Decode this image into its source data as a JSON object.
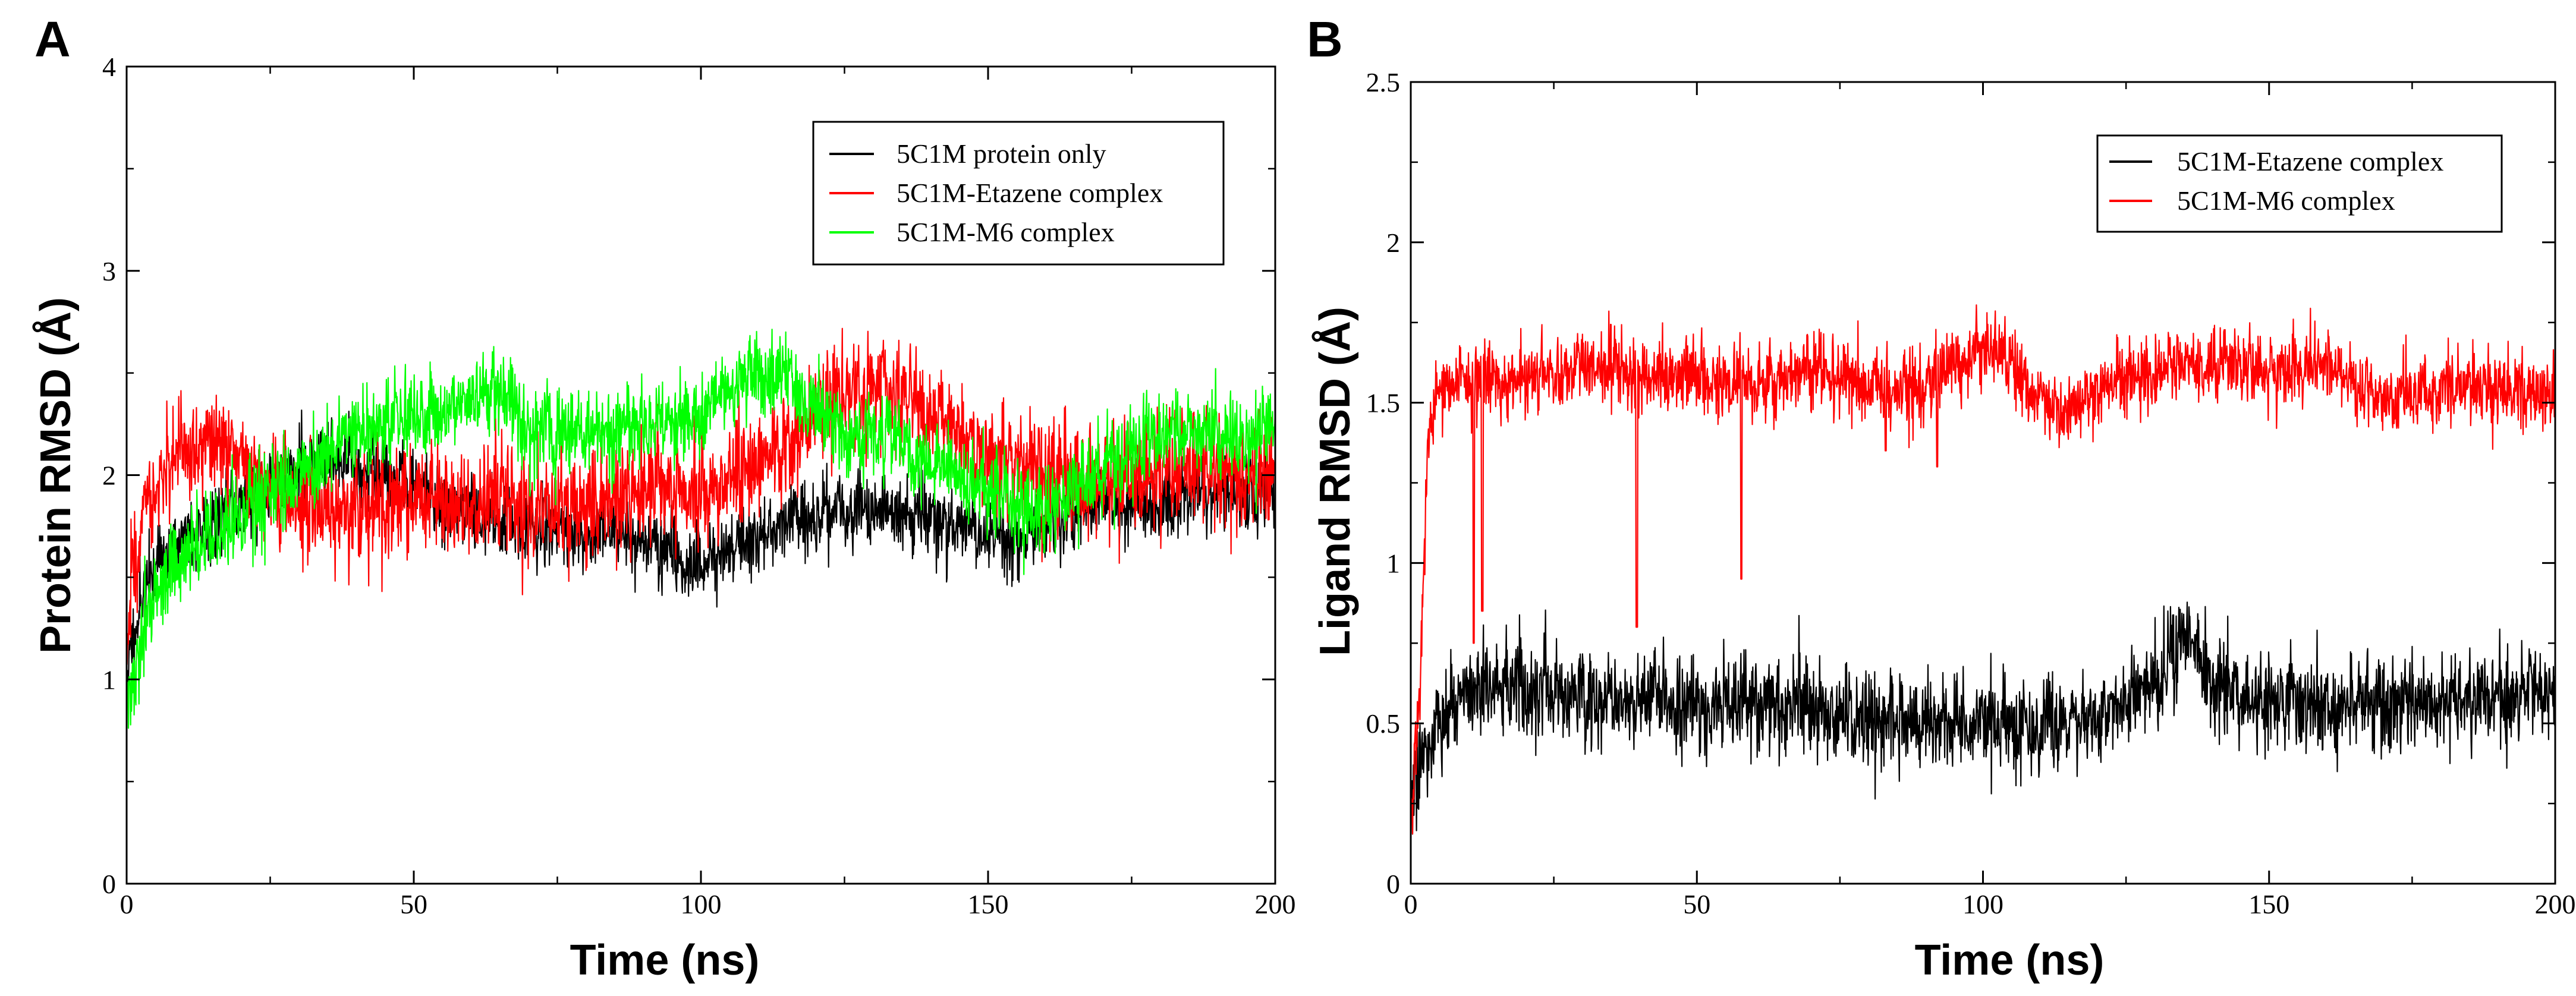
{
  "chart_data": [
    {
      "panel": "A",
      "type": "line",
      "title": "",
      "xlabel": "Time (ns)",
      "ylabel": "Protein RMSD (Å)",
      "xlim": [
        0,
        200
      ],
      "ylim": [
        0,
        4
      ],
      "xticks": [
        0,
        50,
        100,
        150,
        200
      ],
      "yticks": [
        0,
        1,
        2,
        3,
        4
      ],
      "legend_position": "top-right",
      "grid": false,
      "series": [
        {
          "name": "5C1M protein only",
          "color": "#000000",
          "noise": 0.11,
          "x": [
            0,
            1,
            3,
            5,
            8,
            12,
            16,
            20,
            25,
            30,
            35,
            40,
            45,
            50,
            55,
            60,
            65,
            70,
            75,
            80,
            85,
            90,
            95,
            100,
            105,
            110,
            115,
            120,
            125,
            130,
            135,
            140,
            145,
            150,
            155,
            160,
            165,
            170,
            175,
            180,
            185,
            190,
            195,
            200
          ],
          "values": [
            1.0,
            1.2,
            1.45,
            1.55,
            1.65,
            1.72,
            1.82,
            1.88,
            1.95,
            2.05,
            2.1,
            2.05,
            2.0,
            1.95,
            1.85,
            1.8,
            1.78,
            1.75,
            1.72,
            1.72,
            1.7,
            1.68,
            1.6,
            1.55,
            1.62,
            1.72,
            1.78,
            1.8,
            1.82,
            1.82,
            1.8,
            1.78,
            1.75,
            1.72,
            1.7,
            1.75,
            1.8,
            1.85,
            1.85,
            1.85,
            1.88,
            1.9,
            1.92,
            1.95
          ]
        },
        {
          "name": "5C1M-Etazene complex",
          "color": "#ff0000",
          "noise": 0.16,
          "x": [
            0,
            1,
            3,
            6,
            10,
            15,
            20,
            25,
            30,
            35,
            40,
            45,
            50,
            55,
            60,
            65,
            70,
            75,
            80,
            85,
            90,
            95,
            100,
            105,
            110,
            115,
            120,
            125,
            130,
            135,
            140,
            145,
            150,
            155,
            160,
            165,
            170,
            175,
            180,
            185,
            190,
            195,
            200
          ],
          "values": [
            1.1,
            1.5,
            1.85,
            2.0,
            2.1,
            2.15,
            2.1,
            1.95,
            1.85,
            1.82,
            1.82,
            1.85,
            1.9,
            1.88,
            1.85,
            1.9,
            1.85,
            1.8,
            1.85,
            1.9,
            1.95,
            1.95,
            1.95,
            2.0,
            2.05,
            2.15,
            2.3,
            2.4,
            2.45,
            2.4,
            2.3,
            2.2,
            2.1,
            2.05,
            2.0,
            1.98,
            1.95,
            2.0,
            2.02,
            2.05,
            2.05,
            2.0,
            2.0
          ]
        },
        {
          "name": "5C1M-M6 complex",
          "color": "#00ff00",
          "noise": 0.13,
          "x": [
            0,
            1,
            3,
            6,
            10,
            15,
            20,
            25,
            30,
            35,
            40,
            45,
            50,
            55,
            60,
            63,
            66,
            70,
            75,
            80,
            85,
            90,
            95,
            100,
            105,
            110,
            115,
            120,
            125,
            130,
            135,
            140,
            145,
            150,
            155,
            160,
            165,
            170,
            175,
            180,
            185,
            190,
            195,
            200
          ],
          "values": [
            0.85,
            1.0,
            1.25,
            1.45,
            1.6,
            1.72,
            1.82,
            1.92,
            2.0,
            2.1,
            2.2,
            2.28,
            2.3,
            2.3,
            2.35,
            2.45,
            2.4,
            2.25,
            2.2,
            2.2,
            2.22,
            2.25,
            2.28,
            2.32,
            2.42,
            2.5,
            2.5,
            2.3,
            2.2,
            2.2,
            2.15,
            2.1,
            2.0,
            1.95,
            1.85,
            1.8,
            1.9,
            2.05,
            2.15,
            2.2,
            2.22,
            2.2,
            2.18,
            2.2
          ]
        }
      ]
    },
    {
      "panel": "B",
      "type": "line",
      "title": "",
      "xlabel": "Time (ns)",
      "ylabel": "Ligand RMSD (Å)",
      "xlim": [
        0,
        200
      ],
      "ylim": [
        0,
        2.5
      ],
      "xticks": [
        0,
        50,
        100,
        150,
        200
      ],
      "yticks": [
        0,
        0.5,
        1,
        1.5,
        2,
        2.5
      ],
      "legend_position": "top-right",
      "grid": false,
      "series": [
        {
          "name": "5C1M-Etazene complex",
          "color": "#000000",
          "noise": 0.09,
          "x": [
            0,
            1,
            2,
            4,
            6,
            10,
            14,
            20,
            30,
            40,
            50,
            60,
            70,
            80,
            90,
            100,
            110,
            120,
            125,
            130,
            133,
            136,
            140,
            150,
            160,
            170,
            180,
            190,
            200
          ],
          "values": [
            0.25,
            0.3,
            0.38,
            0.48,
            0.52,
            0.58,
            0.62,
            0.6,
            0.58,
            0.58,
            0.56,
            0.56,
            0.54,
            0.5,
            0.5,
            0.5,
            0.48,
            0.52,
            0.58,
            0.62,
            0.72,
            0.8,
            0.62,
            0.56,
            0.55,
            0.55,
            0.56,
            0.58,
            0.6
          ]
        },
        {
          "name": "5C1M-M6 complex",
          "color": "#ff0000",
          "noise": 0.07,
          "x": [
            0,
            1,
            2,
            3,
            5,
            10,
            20,
            30,
            40,
            50,
            60,
            70,
            80,
            90,
            100,
            105,
            110,
            115,
            120,
            130,
            140,
            150,
            160,
            165,
            170,
            180,
            190,
            200
          ],
          "values": [
            0.2,
            0.4,
            0.8,
            1.4,
            1.55,
            1.55,
            1.58,
            1.62,
            1.58,
            1.58,
            1.55,
            1.6,
            1.55,
            1.55,
            1.68,
            1.62,
            1.5,
            1.45,
            1.55,
            1.6,
            1.62,
            1.6,
            1.62,
            1.55,
            1.5,
            1.55,
            1.55,
            1.52
          ],
          "dips": [
            {
              "x": 11,
              "value": 0.75
            },
            {
              "x": 12.5,
              "value": 0.85
            },
            {
              "x": 39.5,
              "value": 0.8
            },
            {
              "x": 57.8,
              "value": 0.95
            },
            {
              "x": 83,
              "value": 1.35
            },
            {
              "x": 92,
              "value": 1.3
            }
          ]
        }
      ]
    }
  ]
}
